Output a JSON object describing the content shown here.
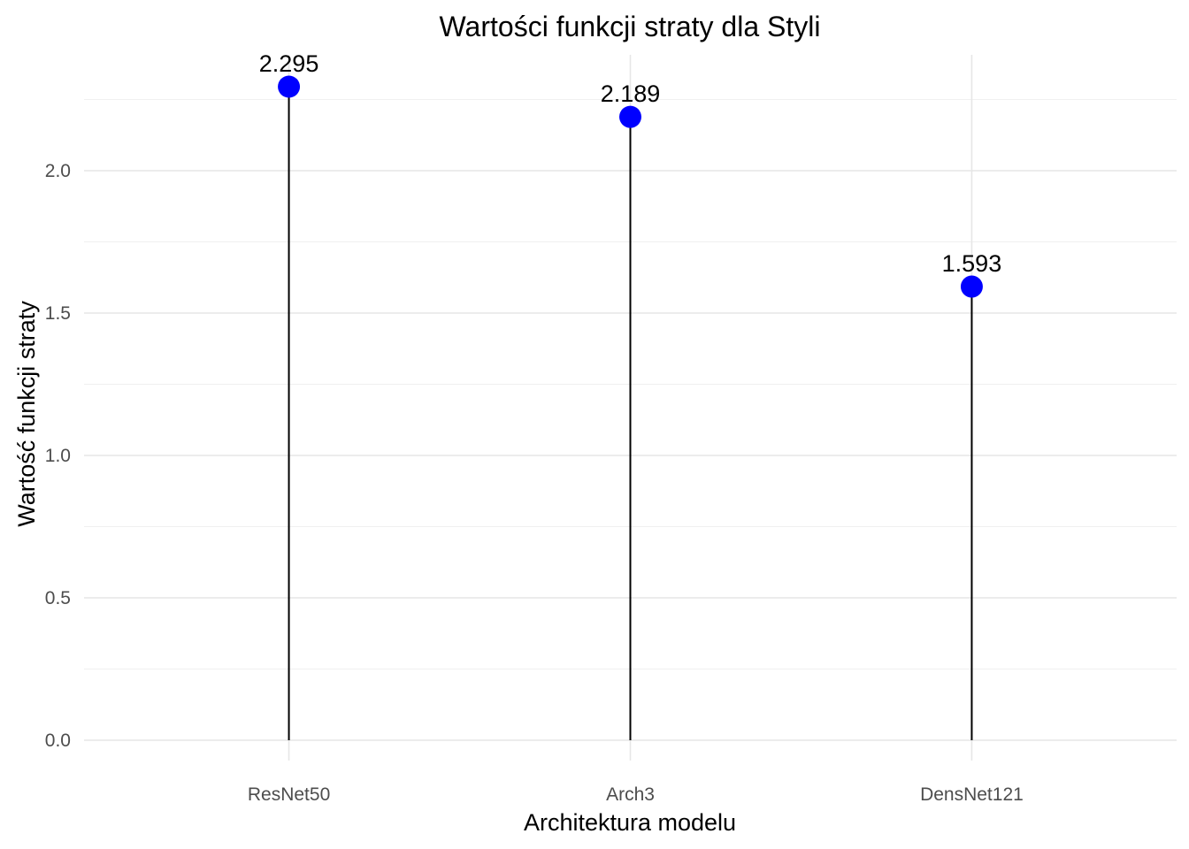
{
  "chart_data": {
    "type": "lollipop",
    "title": "Wartości funkcji straty dla Styli",
    "xlabel": "Architektura modelu",
    "ylabel": "Wartość funkcji straty",
    "categories": [
      "ResNet50",
      "Arch3",
      "DensNet121"
    ],
    "values": [
      2.295,
      2.189,
      1.593
    ],
    "value_labels": [
      "2.295",
      "2.189",
      "1.593"
    ],
    "ylim": [
      0,
      2.295
    ],
    "yticks": [
      0.0,
      0.5,
      1.0,
      1.5,
      2.0
    ],
    "ytick_labels": [
      "0.0",
      "0.5",
      "1.0",
      "1.5",
      "2.0"
    ],
    "grid": true,
    "legend": "none",
    "colors": {
      "point": "#0000ff",
      "stem": "#000000",
      "grid": "#e6e6e6"
    }
  }
}
